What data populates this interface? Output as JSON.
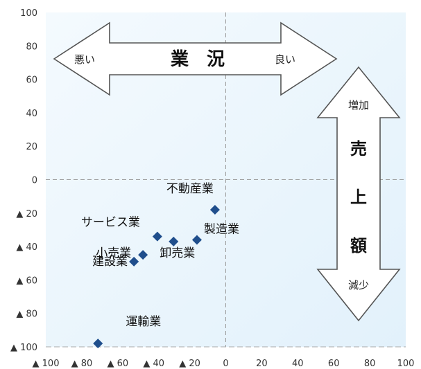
{
  "chart_data": {
    "type": "scatter",
    "title": "",
    "xlabel": "",
    "ylabel": "",
    "xlim": [
      -100,
      100
    ],
    "ylim": [
      -100,
      100
    ],
    "grid": false,
    "x_ticks": [
      {
        "value": -100,
        "label": "▲ 100"
      },
      {
        "value": -80,
        "label": "▲ 80"
      },
      {
        "value": -60,
        "label": "▲ 60"
      },
      {
        "value": -40,
        "label": "▲ 40"
      },
      {
        "value": -20,
        "label": "▲ 20"
      },
      {
        "value": 0,
        "label": "0"
      },
      {
        "value": 20,
        "label": "20"
      },
      {
        "value": 40,
        "label": "40"
      },
      {
        "value": 60,
        "label": "60"
      },
      {
        "value": 80,
        "label": "80"
      },
      {
        "value": 100,
        "label": "100"
      }
    ],
    "y_ticks": [
      {
        "value": 100,
        "label": "100"
      },
      {
        "value": 80,
        "label": "80"
      },
      {
        "value": 60,
        "label": "60"
      },
      {
        "value": 40,
        "label": "40"
      },
      {
        "value": 20,
        "label": "20"
      },
      {
        "value": 0,
        "label": "0"
      },
      {
        "value": -20,
        "label": "▲ 20"
      },
      {
        "value": -40,
        "label": "▲ 40"
      },
      {
        "value": -60,
        "label": "▲ 60"
      },
      {
        "value": -80,
        "label": "▲ 80"
      },
      {
        "value": -100,
        "label": "▲ 100"
      }
    ],
    "marker_color": "#1f4e8c",
    "points": [
      {
        "label": "不動産業",
        "x": -6,
        "y": -18
      },
      {
        "label": "製造業",
        "x": -16,
        "y": -36
      },
      {
        "label": "卸売業",
        "x": -29,
        "y": -37
      },
      {
        "label": "サービス業",
        "x": -38,
        "y": -34
      },
      {
        "label": "小売業",
        "x": -46,
        "y": -45
      },
      {
        "label": "建設業",
        "x": -51,
        "y": -49
      },
      {
        "label": "運輸業",
        "x": -71,
        "y": -98
      }
    ],
    "annotations": {
      "horizontal_arrow": {
        "title": "業　況",
        "left": "悪い",
        "right": "良い"
      },
      "vertical_arrow": {
        "top": "増加",
        "center": [
          "売",
          "上",
          "額"
        ],
        "bottom": "減少"
      }
    }
  }
}
